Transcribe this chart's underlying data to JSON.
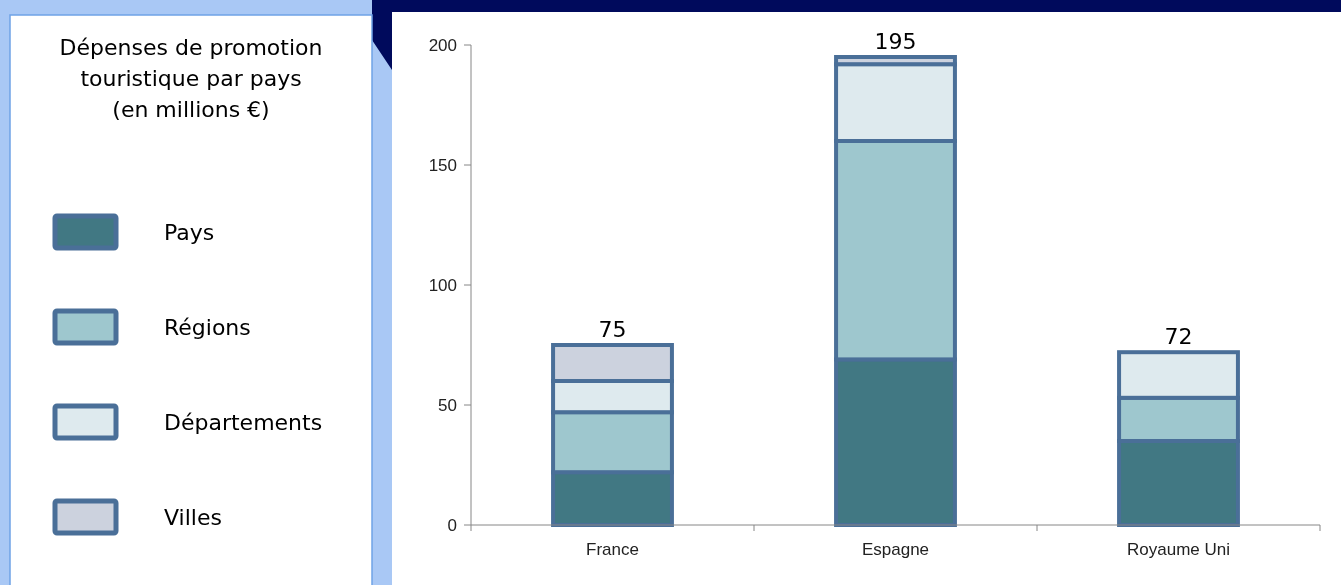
{
  "chart_data": {
    "type": "bar",
    "title": "Dépenses de promotion touristique par pays (en millions €)",
    "categories": [
      "France",
      "Espagne",
      "Royaume Uni"
    ],
    "series": [
      {
        "name": "Pays",
        "color": "#417883",
        "values": [
          22,
          69,
          35
        ]
      },
      {
        "name": "Régions",
        "color": "#9ec7ce",
        "values": [
          25,
          91,
          18
        ]
      },
      {
        "name": "Départements",
        "color": "#deeaee",
        "values": [
          13,
          32,
          19
        ]
      },
      {
        "name": "Villes",
        "color": "#ccd2de",
        "values": [
          15,
          3,
          null
        ]
      }
    ],
    "stacked": true,
    "totals": [
      "75",
      "195",
      "72"
    ],
    "ylim": [
      0,
      200
    ],
    "yticks": [
      0,
      50,
      100,
      150,
      200
    ],
    "grid": false,
    "legend": "left"
  }
}
